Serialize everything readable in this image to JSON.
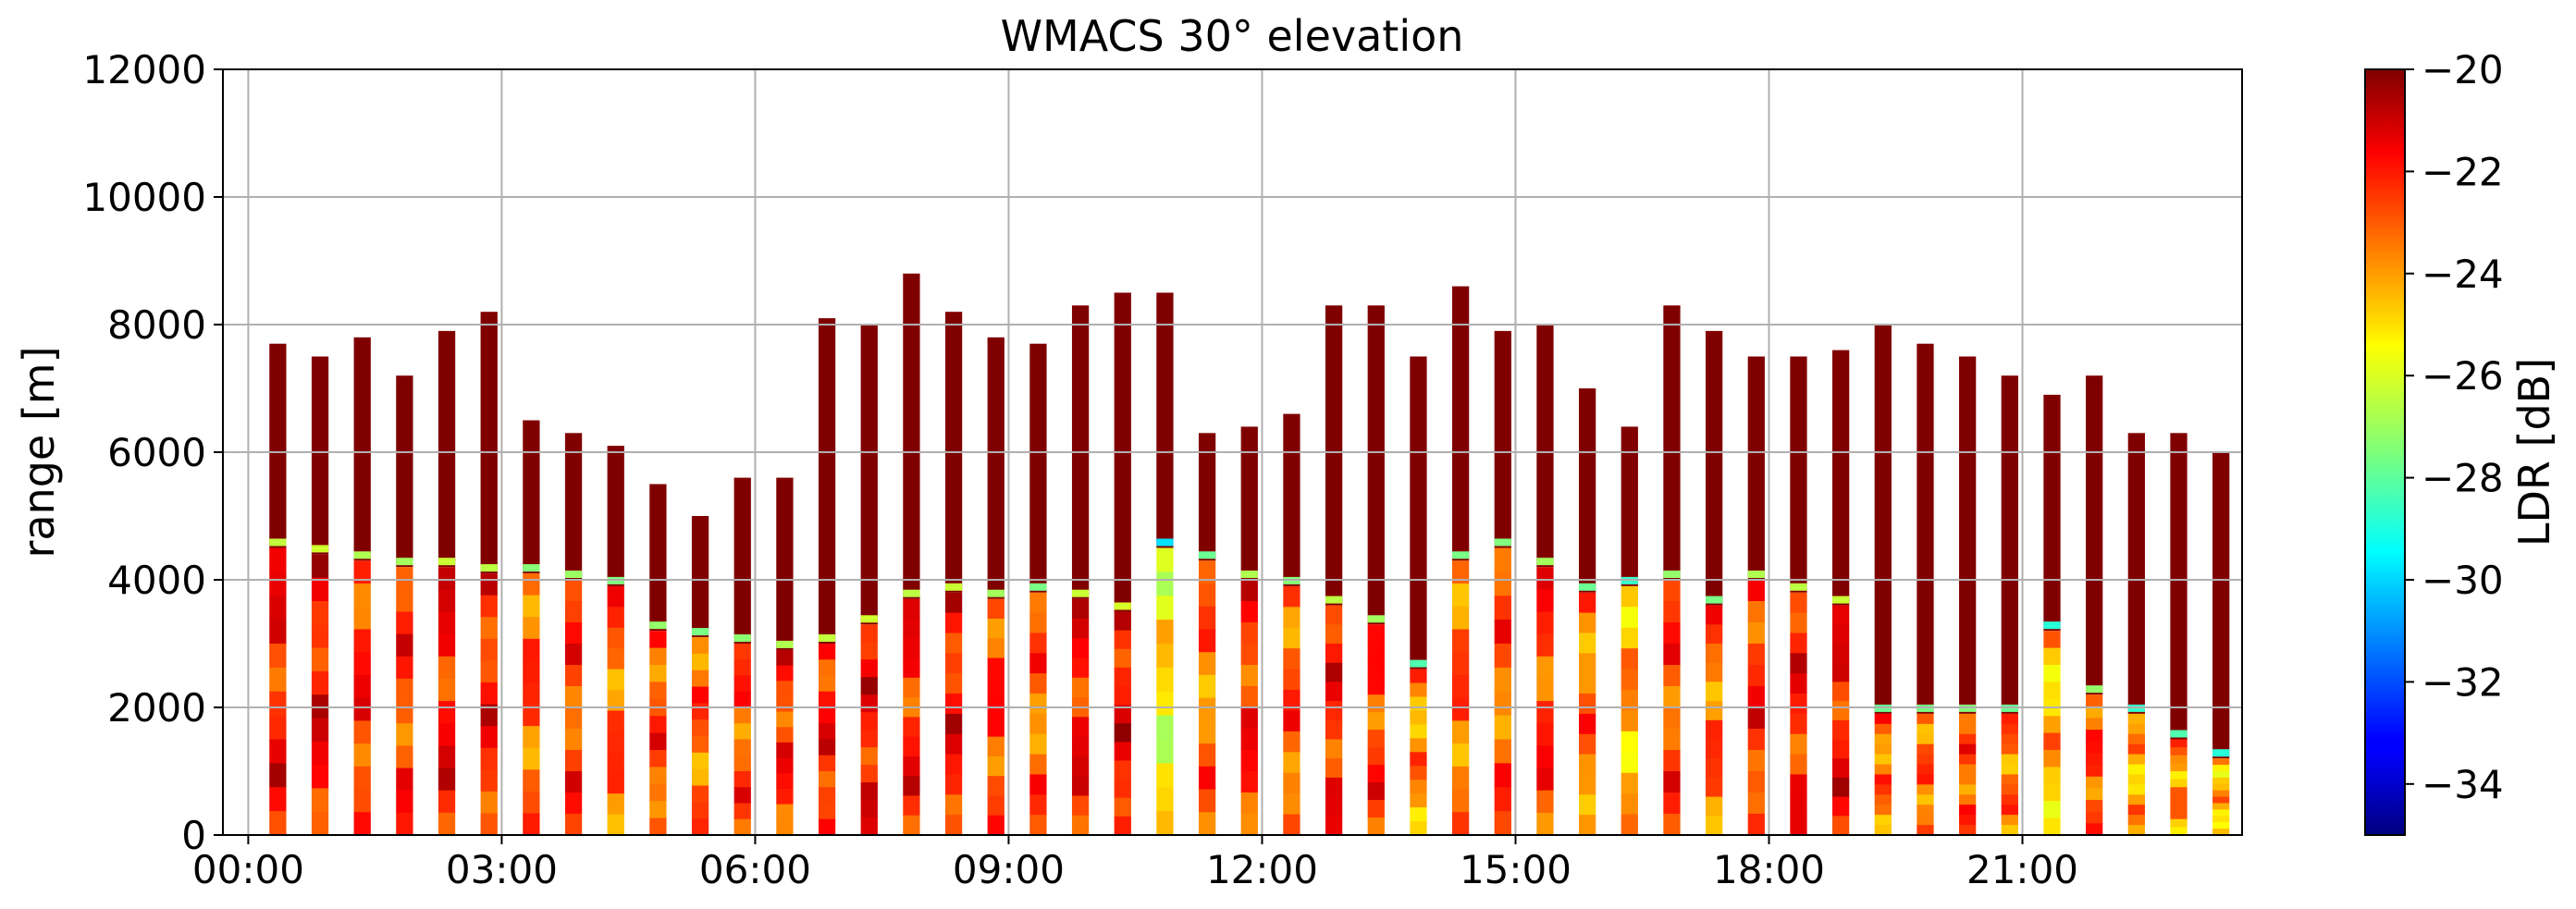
{
  "chart_data": {
    "type": "heatmap",
    "title": "WMACS 30° elevation",
    "xlabel": "",
    "ylabel": "range [m]",
    "x_tick_labels": [
      "00:00",
      "03:00",
      "06:00",
      "09:00",
      "12:00",
      "15:00",
      "18:00",
      "21:00"
    ],
    "x_tick_hours": [
      0,
      3,
      6,
      9,
      12,
      15,
      18,
      21
    ],
    "xlim_hours": [
      -0.3,
      23.6
    ],
    "ylim": [
      0,
      12000
    ],
    "y_ticks": [
      0,
      2000,
      4000,
      6000,
      8000,
      10000,
      12000
    ],
    "grid": true,
    "colorbar": {
      "label": "LDR [dB]",
      "vmin": -35,
      "vmax": -20,
      "ticks": [
        -20,
        -22,
        -24,
        -26,
        -28,
        -30,
        -32,
        -34
      ],
      "tick_labels": [
        "−20",
        "−22",
        "−24",
        "−26",
        "−28",
        "−30",
        "−32",
        "−34"
      ],
      "colormap": "jet"
    },
    "scans": {
      "start_hours": [
        0.25,
        0.75,
        1.25,
        1.75,
        2.25,
        2.75,
        3.25,
        3.75,
        4.25,
        4.75,
        5.25,
        5.75,
        6.25,
        6.75,
        7.25,
        7.75,
        8.25,
        8.75,
        9.25,
        9.75,
        10.25,
        10.75,
        11.25,
        11.75,
        12.25,
        12.75,
        13.25,
        13.75,
        14.25,
        14.75,
        15.25,
        15.75,
        16.25,
        16.75,
        17.25,
        17.75,
        18.25,
        18.75,
        19.25,
        19.75,
        20.25,
        20.75,
        21.25,
        21.75,
        22.25,
        22.75,
        23.25
      ],
      "duration_hours": 0.2,
      "cloud_top_m": [
        7700,
        7500,
        7800,
        7200,
        7900,
        8200,
        6500,
        6300,
        6100,
        5500,
        5000,
        5600,
        5600,
        8100,
        8000,
        8800,
        8200,
        7800,
        7700,
        8300,
        8500,
        8500,
        6300,
        6400,
        6600,
        8300,
        8300,
        7500,
        8600,
        7900,
        8000,
        7000,
        6400,
        8300,
        7900,
        7500,
        7500,
        7600,
        8000,
        7700,
        7500,
        7200,
        6900,
        7200,
        6300,
        6300,
        6000
      ],
      "lower_layer_top_m": [
        4500,
        4400,
        4300,
        4200,
        4200,
        4100,
        4100,
        4000,
        3900,
        3200,
        3100,
        3000,
        2900,
        3000,
        3300,
        3700,
        3800,
        3700,
        3800,
        3700,
        3500,
        4500,
        4300,
        4000,
        3900,
        3600,
        3300,
        2600,
        4300,
        4500,
        4200,
        3800,
        3900,
        4000,
        3600,
        4000,
        3800,
        3600,
        1900,
        1900,
        1900,
        1900,
        3200,
        2200,
        1900,
        1500,
        1200
      ],
      "mean_ldr_db": [
        -22.5,
        -22.3,
        -22.8,
        -23.0,
        -22.4,
        -22.6,
        -23.4,
        -23.1,
        -23.5,
        -23.2,
        -23.6,
        -23.3,
        -22.8,
        -22.5,
        -22.3,
        -22.6,
        -22.4,
        -23.0,
        -23.6,
        -22.4,
        -22.2,
        -25.8,
        -23.8,
        -22.8,
        -23.4,
        -22.6,
        -23.0,
        -24.2,
        -23.6,
        -23.5,
        -23.0,
        -23.8,
        -24.6,
        -23.2,
        -23.6,
        -22.8,
        -22.6,
        -22.4,
        -23.8,
        -23.6,
        -23.4,
        -23.8,
        -24.8,
        -23.2,
        -24.6,
        -24.2,
        -24.8
      ]
    }
  }
}
